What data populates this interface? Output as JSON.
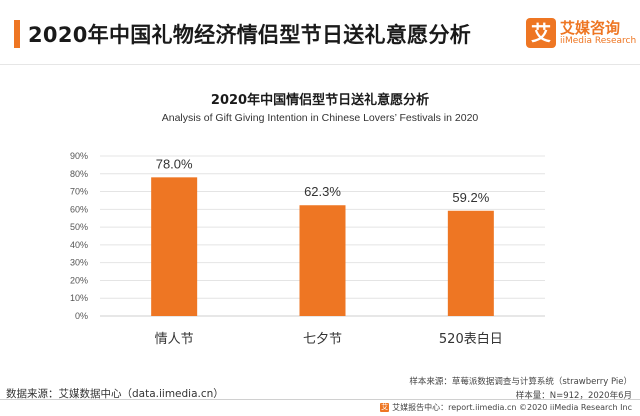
{
  "header": {
    "title": "2020年中国礼物经济情侣型节日送礼意愿分析",
    "logo_mark": "艾",
    "logo_cn": "艾媒咨询",
    "logo_en": "iiMedia Research"
  },
  "chart_data": {
    "type": "bar",
    "title": "2020年中国情侣型节日送礼意愿分析",
    "subtitle": "Analysis of Gift Giving Intention in Chinese Lovers’ Festivals in 2020",
    "categories": [
      "情人节",
      "七夕节",
      "520表白日"
    ],
    "values": [
      78.0,
      62.3,
      59.2
    ],
    "value_labels": [
      "78.0%",
      "62.3%",
      "59.2%"
    ],
    "ylim": [
      0,
      90
    ],
    "yticks": [
      "0%",
      "10%",
      "20%",
      "30%",
      "40%",
      "50%",
      "60%",
      "70%",
      "80%",
      "90%"
    ],
    "bar_color": "#ee7623",
    "grid": true
  },
  "footer": {
    "source": "数据来源：艾媒数据中心（data.iimedia.cn）",
    "sample_source": "样本来源：草莓派数据调查与计算系统（strawberry Pie）",
    "sample_size": "样本量：N=912，2020年6月",
    "credit_icon": "艾",
    "credit": "艾媒报告中心：report.iimedia.cn  ©2020  iiMedia Research Inc"
  },
  "colors": {
    "accent": "#ee7623"
  }
}
